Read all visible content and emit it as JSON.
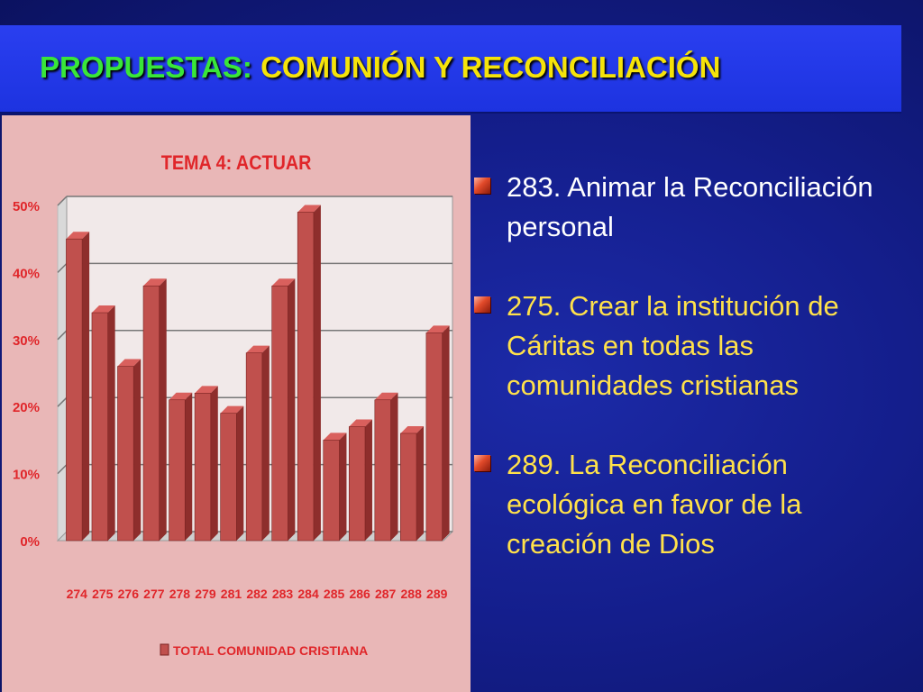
{
  "slide": {
    "title_part1": "PROPUESTAS:",
    "title_part2": "COMUNIÓN Y RECONCILIACIÓN",
    "colors": {
      "background": "#141e8c",
      "title_bar": "#2a3ff0",
      "title_green": "#39e639",
      "title_yellow": "#f5e30a",
      "bullet_text": "#ffe14a",
      "bullet_text_first": "#ffffff",
      "chart_panel": "#e9b7b7",
      "bar": "#c0504d"
    }
  },
  "bullets": [
    {
      "text": "283. Animar la Reconciliación personal",
      "icon": "square-bullet-icon"
    },
    {
      "text": "275. Crear la institución de Cáritas en todas las comunidades cristianas",
      "icon": "square-bullet-icon"
    },
    {
      "text": "289. La Reconciliación ecológica en favor de la creación de Dios",
      "icon": "square-bullet-icon"
    }
  ],
  "chart_data": {
    "type": "bar",
    "title": "TEMA 4: ACTUAR",
    "categories": [
      "274",
      "275",
      "276",
      "277",
      "278",
      "279",
      "281",
      "282",
      "283",
      "284",
      "285",
      "286",
      "287",
      "288",
      "289"
    ],
    "series": [
      {
        "name": "TOTAL COMUNIDAD CRISTIANA",
        "values": [
          45,
          34,
          26,
          38,
          21,
          22,
          19,
          28,
          38,
          49,
          15,
          17,
          21,
          16,
          31
        ],
        "color": "#c0504d"
      }
    ],
    "ylim": [
      0,
      50
    ],
    "yticks": [
      "0%",
      "10%",
      "20%",
      "30%",
      "40%",
      "50%"
    ],
    "grid": true,
    "legend_position": "bottom",
    "style": "3d-columns"
  }
}
